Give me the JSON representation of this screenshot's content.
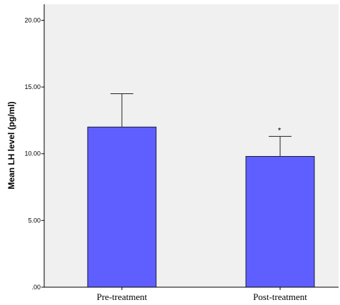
{
  "chart_data": {
    "type": "bar",
    "categories": [
      "Pre-treatment",
      "Post-treatment"
    ],
    "values": [
      12.0,
      9.8
    ],
    "error_upper": [
      14.5,
      11.3
    ],
    "annotations": [
      "",
      "*"
    ],
    "xlabel": "",
    "ylabel": "Mean LH level (pg/ml)",
    "ylim": [
      0,
      21.2
    ],
    "yticks": [
      0,
      5,
      10,
      15,
      20
    ],
    "ytick_labels": [
      ".00",
      "5.00",
      "10.00",
      "15.00",
      "20.00"
    ],
    "grid": false,
    "legend": "none",
    "colors": {
      "bar_fill": "#5f5fff",
      "bar_stroke": "#1a1a3a",
      "plot_background": "#f0f0f0",
      "axis": "#000000"
    }
  }
}
